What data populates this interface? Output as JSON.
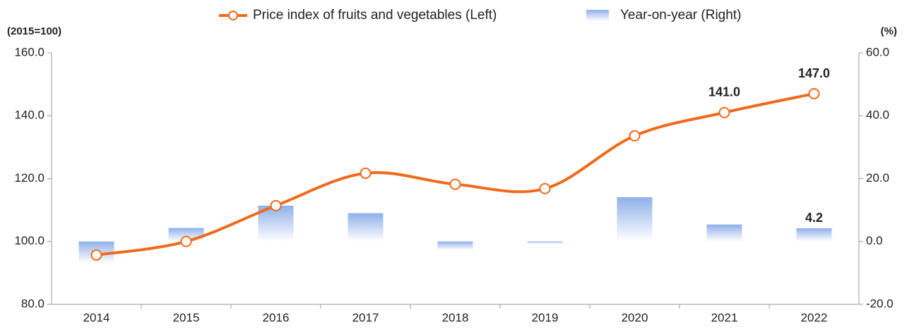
{
  "chart_data": {
    "type": "bar-line",
    "ylabel": "(2015=100)",
    "y2label": "(%)",
    "categories": [
      "2014",
      "2015",
      "2016",
      "2017",
      "2018",
      "2019",
      "2020",
      "2021",
      "2022"
    ],
    "ylim": [
      80,
      160
    ],
    "yticks": [
      {
        "value": 80,
        "label": "80.0"
      },
      {
        "value": 100,
        "label": "100.0"
      },
      {
        "value": 120,
        "label": "120.0"
      },
      {
        "value": 140,
        "label": "140.0"
      },
      {
        "value": 160,
        "label": "160.0"
      }
    ],
    "y2lim": [
      -20,
      60
    ],
    "y2ticks": [
      {
        "value": -20,
        "label": "-20.0"
      },
      {
        "value": 0,
        "label": "0.0"
      },
      {
        "value": 20,
        "label": "20.0"
      },
      {
        "value": 40,
        "label": "40.0"
      },
      {
        "value": 60,
        "label": "60.0"
      }
    ],
    "legend": "top",
    "series": [
      {
        "name": "Price index of fruits and vegetables (Left)",
        "type": "line",
        "color": "#f06a1c",
        "values": [
          95.7,
          100,
          111.4,
          121.7,
          118.2,
          116.8,
          133.6,
          141.0,
          147.0
        ],
        "value_labels": [
          null,
          null,
          null,
          null,
          null,
          null,
          null,
          "141.0",
          "147.0"
        ]
      },
      {
        "name": "Year-on-year (Right)",
        "type": "bar",
        "axis": "y2",
        "color": "#8fb0ea",
        "values": [
          -6.7,
          4.3,
          11.4,
          9.0,
          -2.7,
          -0.7,
          14.1,
          5.4,
          4.2
        ],
        "value_labels": [
          null,
          null,
          null,
          null,
          null,
          null,
          null,
          null,
          "4.2"
        ]
      }
    ]
  }
}
